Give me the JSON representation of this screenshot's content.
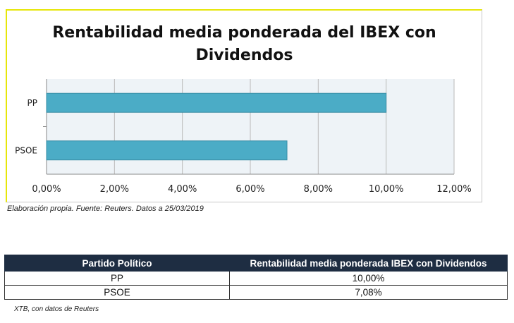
{
  "chart_data": {
    "type": "bar",
    "orientation": "horizontal",
    "title": "Rentabilidad media ponderada del IBEX con Dividendos",
    "categories": [
      "PP",
      "PSOE"
    ],
    "values": [
      10.0,
      7.08
    ],
    "xlim": [
      0,
      12
    ],
    "xticks": [
      "0,00%",
      "2,00%",
      "4,00%",
      "6,00%",
      "8,00%",
      "10,00%",
      "12,00%"
    ],
    "grid": true,
    "legend": "none",
    "bar_color": "#4bacc6",
    "plot_bg": "#eef3f7"
  },
  "chart_caption": "Elaboración propia. Fuente: Reuters. Datos a 25/03/2019",
  "table": {
    "headers": [
      "Partido Político",
      "Rentabilidad media ponderada IBEX con Dividendos"
    ],
    "rows": [
      [
        "PP",
        "10,00%"
      ],
      [
        "PSOE",
        "7,08%"
      ]
    ],
    "header_bg": "#1e2d42"
  },
  "table_caption": "XTB, con datos de Reuters"
}
